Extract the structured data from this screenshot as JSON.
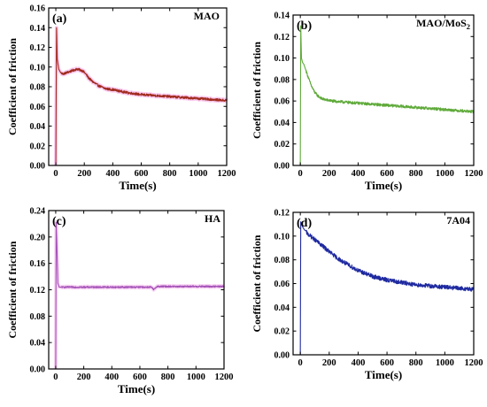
{
  "chart_data": [
    {
      "type": "line",
      "panel_label": "(a)",
      "title": "MAO",
      "xlabel": "Time(s)",
      "ylabel": "Coefficient of friction",
      "xlim": [
        -50,
        1200
      ],
      "ylim": [
        0.0,
        0.16
      ],
      "xticks": [
        0,
        200,
        400,
        600,
        800,
        1000,
        1200
      ],
      "yticks": [
        0.0,
        0.02,
        0.04,
        0.06,
        0.08,
        0.1,
        0.12,
        0.14,
        0.16
      ],
      "ytick_decimals": 2,
      "grid": false,
      "series": [
        {
          "color": "#a12c1f",
          "glow": "#f06ad8",
          "noise": 0.0012,
          "x": [
            0,
            5,
            10,
            20,
            35,
            50,
            70,
            90,
            110,
            130,
            150,
            170,
            190,
            210,
            230,
            260,
            300,
            350,
            400,
            500,
            600,
            700,
            800,
            900,
            1000,
            1100,
            1200
          ],
          "y": [
            0.0,
            0.14,
            0.108,
            0.098,
            0.094,
            0.093,
            0.094,
            0.095,
            0.096,
            0.097,
            0.098,
            0.097,
            0.096,
            0.093,
            0.089,
            0.085,
            0.081,
            0.078,
            0.077,
            0.074,
            0.072,
            0.071,
            0.07,
            0.069,
            0.068,
            0.067,
            0.066
          ]
        }
      ]
    },
    {
      "type": "line",
      "panel_label": "(b)",
      "title": "MAO/MoS",
      "title_subscript": "2",
      "xlabel": "Time(s)",
      "ylabel": "Coefficient of friction",
      "xlim": [
        -50,
        1200
      ],
      "ylim": [
        0.0,
        0.14
      ],
      "xticks": [
        0,
        200,
        400,
        600,
        800,
        1000,
        1200
      ],
      "yticks": [
        0.0,
        0.02,
        0.04,
        0.06,
        0.08,
        0.1,
        0.12,
        0.14
      ],
      "ytick_decimals": 2,
      "grid": false,
      "series": [
        {
          "color": "#5faa3a",
          "glow": "",
          "noise": 0.0013,
          "x": [
            0,
            3,
            8,
            15,
            25,
            40,
            60,
            80,
            100,
            120,
            150,
            180,
            220,
            300,
            400,
            500,
            600,
            700,
            800,
            900,
            1000,
            1100,
            1200
          ],
          "y": [
            0.0,
            0.13,
            0.1,
            0.096,
            0.094,
            0.088,
            0.08,
            0.073,
            0.068,
            0.065,
            0.062,
            0.061,
            0.06,
            0.059,
            0.058,
            0.057,
            0.056,
            0.055,
            0.054,
            0.053,
            0.052,
            0.051,
            0.05
          ]
        }
      ]
    },
    {
      "type": "line",
      "panel_label": "(c)",
      "title": "HA",
      "xlabel": "Time(s)",
      "ylabel": "Coefficient of friction",
      "xlim": [
        -50,
        1200
      ],
      "ylim": [
        0.0,
        0.24
      ],
      "xticks": [
        0,
        200,
        400,
        600,
        800,
        1000,
        1200
      ],
      "yticks": [
        0.0,
        0.04,
        0.08,
        0.12,
        0.16,
        0.2,
        0.24
      ],
      "ytick_decimals": 2,
      "grid": false,
      "series": [
        {
          "color": "#a451b8",
          "glow": "#ec86dc",
          "noise": 0.0012,
          "x": [
            0,
            3,
            8,
            15,
            25,
            40,
            60,
            100,
            200,
            300,
            400,
            500,
            600,
            680,
            700,
            720,
            800,
            900,
            1000,
            1100,
            1200
          ],
          "y": [
            0.0,
            0.222,
            0.19,
            0.13,
            0.124,
            0.124,
            0.124,
            0.124,
            0.124,
            0.124,
            0.124,
            0.124,
            0.124,
            0.124,
            0.12,
            0.125,
            0.125,
            0.125,
            0.125,
            0.125,
            0.125
          ]
        }
      ]
    },
    {
      "type": "line",
      "panel_label": "(d)",
      "title": "7A04",
      "xlabel": "Time(s)",
      "ylabel": "Coefficient of friction",
      "xlim": [
        -50,
        1200
      ],
      "ylim": [
        0.0,
        0.12
      ],
      "xticks": [
        0,
        200,
        400,
        600,
        800,
        1000,
        1200
      ],
      "yticks": [
        0.0,
        0.02,
        0.04,
        0.06,
        0.08,
        0.1,
        0.12
      ],
      "ytick_decimals": 2,
      "grid": false,
      "series": [
        {
          "color": "#1f2aa0",
          "glow": "",
          "noise": 0.0018,
          "x": [
            0,
            3,
            8,
            15,
            30,
            50,
            70,
            100,
            150,
            200,
            250,
            300,
            400,
            500,
            600,
            700,
            800,
            900,
            1000,
            1100,
            1200
          ],
          "y": [
            0.0,
            0.112,
            0.11,
            0.108,
            0.105,
            0.102,
            0.1,
            0.097,
            0.092,
            0.087,
            0.082,
            0.078,
            0.071,
            0.066,
            0.063,
            0.061,
            0.059,
            0.058,
            0.057,
            0.056,
            0.055
          ]
        }
      ]
    }
  ]
}
